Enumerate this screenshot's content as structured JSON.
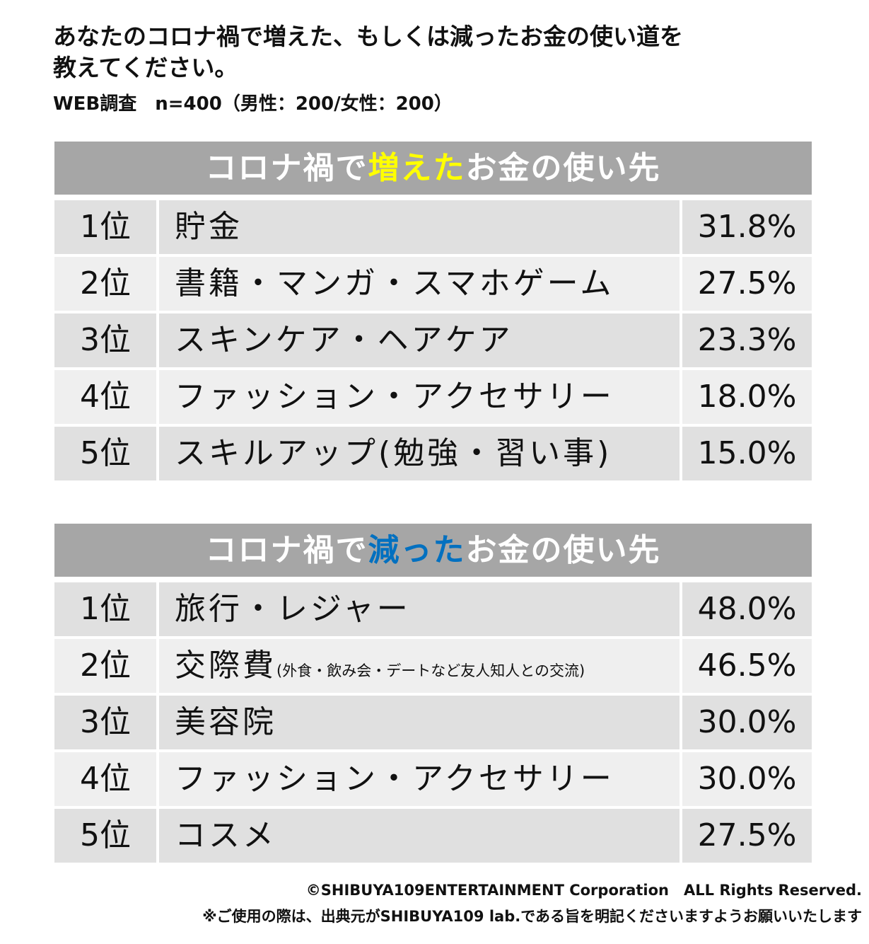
{
  "title_line1": "あなたのコロナ禍で増えた、もしくは減ったお金の使い道を",
  "title_line2": "教えてください。",
  "subtitle": "WEB調査　n=400（男性：200/女性：200）",
  "colors": {
    "header": "#a6a6a6",
    "increase_highlight": "#ffff00",
    "decrease_highlight": "#0070c0"
  },
  "chart_data": [
    {
      "type": "table",
      "title_prefix": "コロナ禍で",
      "title_highlight": "増えた",
      "title_suffix": "お金の使い先",
      "rows": [
        {
          "rank": "1位",
          "item": "貯金",
          "note": "",
          "value": "31.8%"
        },
        {
          "rank": "2位",
          "item": "書籍・マンガ・スマホゲーム",
          "note": "",
          "value": "27.5%"
        },
        {
          "rank": "3位",
          "item": "スキンケア・ヘアケア",
          "note": "",
          "value": "23.3%"
        },
        {
          "rank": "4位",
          "item": "ファッション・アクセサリー",
          "note": "",
          "value": "18.0%"
        },
        {
          "rank": "5位",
          "item": "スキルアップ(勉強・習い事)",
          "note": "",
          "value": "15.0%"
        }
      ]
    },
    {
      "type": "table",
      "title_prefix": "コロナ禍で",
      "title_highlight": "減った",
      "title_suffix": "お金の使い先",
      "rows": [
        {
          "rank": "1位",
          "item": "旅行・レジャー",
          "note": "",
          "value": "48.0%"
        },
        {
          "rank": "2位",
          "item": "交際費",
          "note": "(外食・飲み会・デートなど友人知人との交流)",
          "value": "46.5%"
        },
        {
          "rank": "3位",
          "item": "美容院",
          "note": "",
          "value": "30.0%"
        },
        {
          "rank": "4位",
          "item": "ファッション・アクセサリー",
          "note": "",
          "value": "30.0%"
        },
        {
          "rank": "5位",
          "item": "コスメ",
          "note": "",
          "value": "27.5%"
        }
      ]
    }
  ],
  "footer": {
    "copyright": "©SHIBUYA109ENTERTAINMENT Corporation　ALL Rights Reserved.",
    "notice": "※ご使用の際は、出典元がSHIBUYA109 lab.である旨を明記くださいますようお願いいたします"
  }
}
